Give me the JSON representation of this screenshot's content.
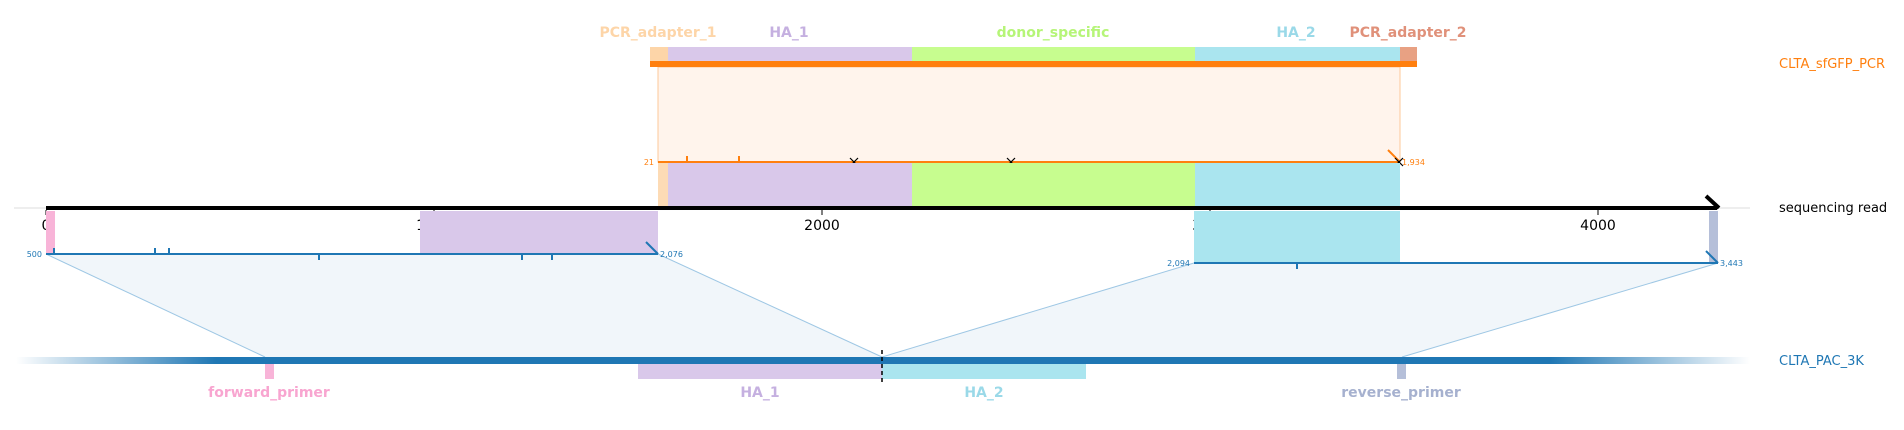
{
  "colors": {
    "pcr_adapter_1": "#fdd5a8",
    "pcr_adapter_2": "#e8a183",
    "ha_1": "#d9c8ea",
    "ha_2": "#aae5ef",
    "donor_specific": "#c7fd8f",
    "forward_primer": "#f8b4d8",
    "reverse_primer": "#b5bfd9",
    "amplicon_orange": "#ff7f0e",
    "amplicon_blue": "#1f77b4",
    "read_black": "#000000"
  },
  "top_annotations": {
    "pcr_adapter_1": "PCR_adapter_1",
    "ha_1": "HA_1",
    "donor_specific": "donor_specific",
    "ha_2": "HA_2",
    "pcr_adapter_2": "PCR_adapter_2"
  },
  "bottom_annotations": {
    "forward_primer": "forward_primer",
    "ha_1": "HA_1",
    "ha_2": "HA_2",
    "reverse_primer": "reverse_primer"
  },
  "sequence_names": {
    "donor": "CLTA_sfGFP_PCR",
    "read": "sequencing read",
    "target": "CLTA_PAC_3K"
  },
  "read_axis": {
    "ticks": [
      "0",
      "1000",
      "2000",
      "3000",
      "4000"
    ]
  },
  "alignments": {
    "donor": {
      "start_label": "21",
      "end_label": "1,934"
    },
    "target_left": {
      "start_label": "500",
      "end_label": "2,076"
    },
    "target_right": {
      "start_label": "2,094",
      "end_label": "3,443"
    }
  }
}
